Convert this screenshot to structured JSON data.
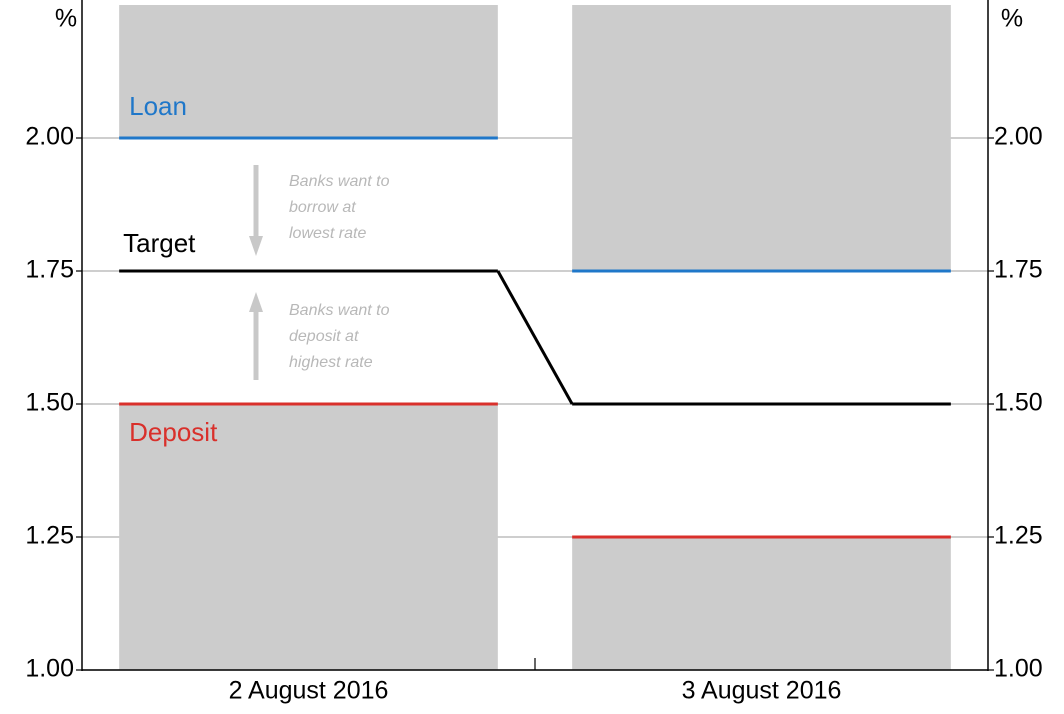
{
  "chart_data": {
    "type": "corridor",
    "y_label": "%",
    "y2_label": "%",
    "categories": [
      "2 August 2016",
      "3 August 2016"
    ],
    "series": [
      {
        "name": "Loan",
        "color": "#1f77c9",
        "values": [
          2.0,
          1.75
        ]
      },
      {
        "name": "Target",
        "color": "#000000",
        "values": [
          1.75,
          1.5
        ]
      },
      {
        "name": "Deposit",
        "color": "#d9302b",
        "values": [
          1.5,
          1.25
        ]
      }
    ],
    "shade_color": "#cccccc",
    "ylim": [
      1.0,
      2.25
    ],
    "yticks": [
      {
        "value": 1.0,
        "label": "1.00"
      },
      {
        "value": 1.25,
        "label": "1.25"
      },
      {
        "value": 1.5,
        "label": "1.50"
      },
      {
        "value": 1.75,
        "label": "1.75"
      },
      {
        "value": 2.0,
        "label": "2.00"
      }
    ],
    "y2lim": [
      1.0,
      2.25
    ],
    "y2ticks": [
      {
        "value": 1.0,
        "label": "1.00"
      },
      {
        "value": 1.25,
        "label": "1.25"
      },
      {
        "value": 1.5,
        "label": "1.50"
      },
      {
        "value": 1.75,
        "label": "1.75"
      },
      {
        "value": 2.0,
        "label": "2.00"
      }
    ],
    "grid": true,
    "annotations": [
      {
        "lines": [
          "Banks want to",
          "borrow at",
          "lowest rate"
        ]
      },
      {
        "lines": [
          "Banks want to",
          "deposit at",
          "highest rate"
        ]
      }
    ]
  }
}
